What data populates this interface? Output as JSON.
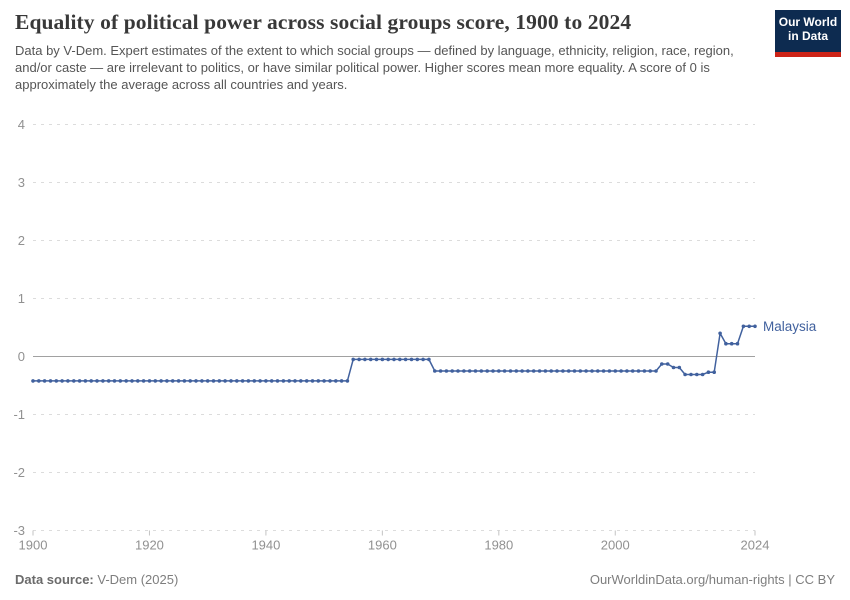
{
  "header": {
    "title": "Equality of political power across social groups score, 1900 to 2024",
    "subtitle": "Data by V-Dem. Expert estimates of the extent to which social groups — defined by language, ethnicity, religion, race, region, and/or caste — are irrelevant to politics, or have similar political power. Higher scores mean more equality. A score of 0 is approximately the average across all countries and years.",
    "logo": {
      "line1": "Our World",
      "line2": "in Data",
      "bg_color": "#0d2b50",
      "accent_color": "#cd2317",
      "text_color": "#ffffff"
    }
  },
  "chart_data": {
    "type": "line",
    "title": "Equality of political power across social groups score, 1900 to 2024",
    "xlabel": "",
    "ylabel": "",
    "xlim": [
      1900,
      2024
    ],
    "ylim": [
      -3,
      4
    ],
    "x_ticks": [
      1900,
      1920,
      1940,
      1960,
      1980,
      2000,
      2024
    ],
    "y_ticks": [
      4,
      3,
      2,
      1,
      0,
      -1,
      -2,
      -3
    ],
    "grid": "horizontal-dashed",
    "zero_line": true,
    "legend_position": "right-of-line-end",
    "grid_color": "#dcdcdc",
    "zero_line_color": "#a1a1a1",
    "series": [
      {
        "name": "Malaysia",
        "color": "#41619e",
        "start_year": 1900,
        "end_year": 2024,
        "values": [
          -0.42,
          -0.42,
          -0.42,
          -0.42,
          -0.42,
          -0.42,
          -0.42,
          -0.42,
          -0.42,
          -0.42,
          -0.42,
          -0.42,
          -0.42,
          -0.42,
          -0.42,
          -0.42,
          -0.42,
          -0.42,
          -0.42,
          -0.42,
          -0.42,
          -0.42,
          -0.42,
          -0.42,
          -0.42,
          -0.42,
          -0.42,
          -0.42,
          -0.42,
          -0.42,
          -0.42,
          -0.42,
          -0.42,
          -0.42,
          -0.42,
          -0.42,
          -0.42,
          -0.42,
          -0.42,
          -0.42,
          -0.42,
          -0.42,
          -0.42,
          -0.42,
          -0.42,
          -0.42,
          -0.42,
          -0.42,
          -0.42,
          -0.42,
          -0.42,
          -0.42,
          -0.42,
          -0.42,
          -0.42,
          -0.05,
          -0.05,
          -0.05,
          -0.05,
          -0.05,
          -0.05,
          -0.05,
          -0.05,
          -0.05,
          -0.05,
          -0.05,
          -0.05,
          -0.05,
          -0.05,
          -0.25,
          -0.25,
          -0.25,
          -0.25,
          -0.25,
          -0.25,
          -0.25,
          -0.25,
          -0.25,
          -0.25,
          -0.25,
          -0.25,
          -0.25,
          -0.25,
          -0.25,
          -0.25,
          -0.25,
          -0.25,
          -0.25,
          -0.25,
          -0.25,
          -0.25,
          -0.25,
          -0.25,
          -0.25,
          -0.25,
          -0.25,
          -0.25,
          -0.25,
          -0.25,
          -0.25,
          -0.25,
          -0.25,
          -0.25,
          -0.25,
          -0.25,
          -0.25,
          -0.25,
          -0.25,
          -0.13,
          -0.13,
          -0.19,
          -0.19,
          -0.31,
          -0.31,
          -0.31,
          -0.31,
          -0.27,
          -0.27,
          0.4,
          0.22,
          0.22,
          0.22,
          0.52,
          0.52,
          0.52
        ]
      }
    ]
  },
  "footer": {
    "source_label": "Data source:",
    "source_value": " V-Dem (2025)",
    "right_text": "OurWorldinData.org/human-rights | CC BY"
  }
}
